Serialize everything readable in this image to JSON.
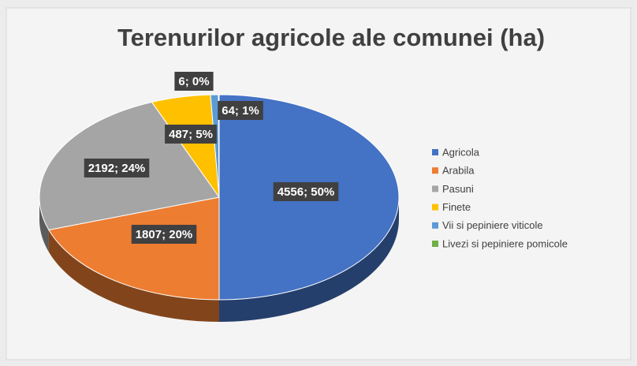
{
  "chart_data": {
    "type": "pie3d",
    "title": "Terenurilor agricole ale comunei (ha)",
    "categories": [
      "Agricola",
      "Arabila",
      "Pasuni",
      "Finete",
      "Vii si pepiniere viticole",
      "Livezi si pepiniere pomicole"
    ],
    "values": [
      4556,
      1807,
      2192,
      487,
      64,
      6
    ],
    "value_labels": [
      "4556; 50%",
      "1807; 20%",
      "2192; 24%",
      "487; 5%",
      "64; 1%",
      "6; 0%"
    ],
    "colors": [
      "#4472c4",
      "#ed7d31",
      "#a5a5a5",
      "#ffc000",
      "#5b9bd5",
      "#70ad47"
    ],
    "legend": "right"
  }
}
